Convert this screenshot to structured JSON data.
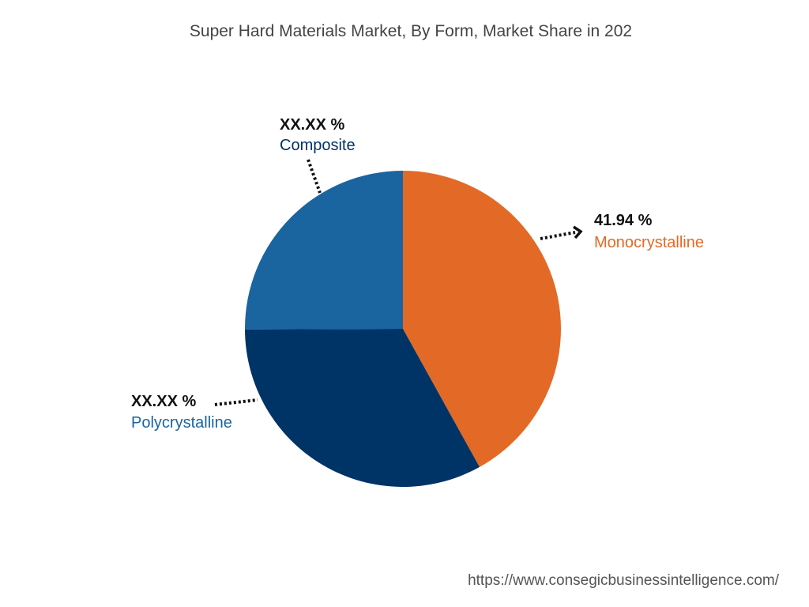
{
  "title": "Super Hard Materials Market, By Form, Market Share in 202",
  "footer_url": "https://www.consegicbusinessintelligence.com/",
  "chart_data": {
    "type": "pie",
    "title": "Super Hard Materials Market, By Form, Market Share in 202",
    "slices": [
      {
        "name": "Monocrystalline",
        "value": 41.94,
        "label": "41.94 %",
        "color": "#E36A26"
      },
      {
        "name": "Polycrystalline",
        "value": 33.0,
        "label": "XX.XX %",
        "color": "#003366"
      },
      {
        "name": "Composite",
        "value": 25.06,
        "label": "XX.XX %",
        "color": "#1A64A0"
      }
    ],
    "label_colors": {
      "Monocrystalline": "#E36A26",
      "Polycrystalline": "#1A64A0",
      "Composite": "#003366"
    }
  }
}
